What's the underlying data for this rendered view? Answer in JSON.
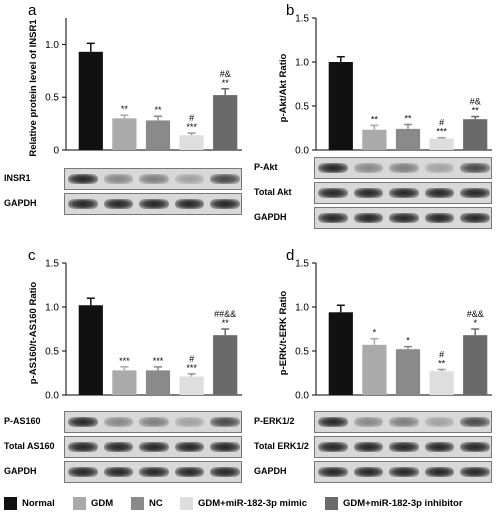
{
  "groups": [
    "Normal",
    "GDM",
    "NC",
    "GDM+miR-182-3p mimic",
    "GDM+miR-182-3p inhibitor"
  ],
  "colors": [
    "#111111",
    "#aaaaaa",
    "#8a8a8a",
    "#dedede",
    "#6a6a6a"
  ],
  "chart_data": [
    {
      "type": "bar",
      "panel": "a",
      "ylabel": "Relative protein level of INSR1",
      "ylim": [
        0,
        1.25
      ],
      "yticks": [
        "0",
        "0.5",
        "1.0"
      ],
      "tick_values": [
        0,
        0.5,
        1.0
      ],
      "values": [
        0.93,
        0.3,
        0.28,
        0.14,
        0.52
      ],
      "errors": [
        0.08,
        0.03,
        0.04,
        0.02,
        0.06
      ],
      "annotations": [
        "",
        "**",
        "**",
        "#\n***",
        "#&\n**"
      ],
      "blots": [
        "INSR1",
        "GAPDH"
      ]
    },
    {
      "type": "bar",
      "panel": "b",
      "ylabel": "p-Akt/Akt Ratio",
      "ylim": [
        0,
        1.5
      ],
      "yticks": [
        "0.0",
        "0.5",
        "1.0",
        "1.5"
      ],
      "tick_values": [
        0,
        0.5,
        1.0,
        1.5
      ],
      "values": [
        1.0,
        0.23,
        0.24,
        0.13,
        0.35
      ],
      "errors": [
        0.06,
        0.05,
        0.05,
        0.01,
        0.03
      ],
      "annotations": [
        "",
        "**",
        "**",
        "#\n***",
        "#&\n**"
      ],
      "blots": [
        "P-Akt",
        "Total Akt",
        "GAPDH"
      ]
    },
    {
      "type": "bar",
      "panel": "c",
      "ylabel": "p-AS160/t-AS160 Ratio",
      "ylim": [
        0,
        1.5
      ],
      "yticks": [
        "0.0",
        "0.5",
        "1.0",
        "1.5"
      ],
      "tick_values": [
        0,
        0.5,
        1.0,
        1.5
      ],
      "values": [
        1.02,
        0.28,
        0.28,
        0.21,
        0.68
      ],
      "errors": [
        0.08,
        0.04,
        0.04,
        0.03,
        0.07
      ],
      "annotations": [
        "",
        "***",
        "***",
        "#\n***",
        "##&&\n**"
      ],
      "blots": [
        "P-AS160",
        "Total AS160",
        "GAPDH"
      ]
    },
    {
      "type": "bar",
      "panel": "d",
      "ylabel": "p-ERK/t-ERK Ratio",
      "ylim": [
        0,
        1.5
      ],
      "yticks": [
        "0.0",
        "0.5",
        "1.0",
        "1.5"
      ],
      "tick_values": [
        0,
        0.5,
        1.0,
        1.5
      ],
      "values": [
        0.94,
        0.57,
        0.52,
        0.27,
        0.68
      ],
      "errors": [
        0.08,
        0.07,
        0.03,
        0.02,
        0.07
      ],
      "annotations": [
        "",
        "*",
        "*",
        "#\n**",
        "#&&\n*"
      ],
      "blots": [
        "P-ERK1/2",
        "Total ERK1/2",
        "GAPDH"
      ]
    }
  ]
}
